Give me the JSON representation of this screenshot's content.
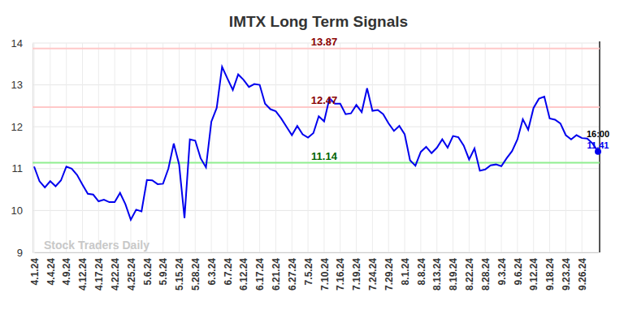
{
  "chart_data": {
    "type": "line",
    "title": "IMTX Long Term Signals",
    "watermark": "Stock Traders Daily",
    "categories": [
      "4.1.24",
      null,
      null,
      "4.4.24",
      null,
      null,
      "4.9.24",
      null,
      null,
      "4.12.24",
      null,
      null,
      "4.17.24",
      null,
      null,
      "4.22.24",
      null,
      null,
      "4.25.24",
      null,
      null,
      "5.6.24",
      null,
      null,
      "5.9.24",
      null,
      null,
      "5.15.24",
      null,
      null,
      "5.28.24",
      null,
      null,
      "6.3.24",
      null,
      null,
      "6.7.24",
      null,
      null,
      "6.12.24",
      null,
      null,
      "6.17.24",
      null,
      null,
      "6.21.24",
      null,
      null,
      "6.27.24",
      null,
      null,
      "7.5.24",
      null,
      null,
      "7.10.24",
      null,
      null,
      "7.16.24",
      null,
      null,
      "7.19.24",
      null,
      null,
      "7.24.24",
      null,
      null,
      "7.29.24",
      null,
      null,
      "8.1.24",
      null,
      null,
      "8.8.24",
      null,
      null,
      "8.13.24",
      null,
      null,
      "8.19.24",
      null,
      null,
      "8.22.24",
      null,
      null,
      "8.28.24",
      null,
      null,
      "9.3.24",
      null,
      null,
      "9.6.24",
      null,
      null,
      "9.12.24",
      null,
      null,
      "9.18.24",
      null,
      null,
      "9.23.24",
      null,
      null,
      "9.26.24",
      null,
      null,
      null
    ],
    "series": [
      {
        "name": "IMTX",
        "color": "#0000ee",
        "values": [
          11.05,
          10.7,
          10.55,
          10.7,
          10.58,
          10.72,
          11.05,
          11.0,
          10.85,
          10.62,
          10.4,
          10.38,
          10.22,
          10.26,
          10.2,
          10.2,
          10.42,
          10.15,
          9.78,
          10.02,
          9.98,
          10.73,
          10.72,
          10.63,
          10.64,
          11.0,
          11.6,
          11.1,
          9.82,
          11.7,
          11.67,
          11.25,
          11.03,
          12.12,
          12.45,
          13.43,
          13.15,
          12.88,
          13.25,
          13.12,
          12.95,
          13.02,
          13.0,
          12.55,
          12.42,
          12.37,
          12.2,
          12.0,
          11.8,
          12.02,
          11.82,
          11.74,
          11.85,
          12.25,
          12.13,
          12.68,
          12.55,
          12.55,
          12.3,
          12.32,
          12.52,
          12.35,
          12.92,
          12.38,
          12.4,
          12.3,
          12.08,
          11.9,
          12.02,
          11.82,
          11.2,
          11.07,
          11.4,
          11.52,
          11.37,
          11.5,
          11.7,
          11.5,
          11.78,
          11.75,
          11.55,
          11.22,
          11.48,
          10.95,
          10.98,
          11.08,
          11.1,
          11.06,
          11.25,
          11.42,
          11.7,
          12.18,
          11.93,
          12.45,
          12.67,
          12.72,
          12.2,
          12.17,
          12.08,
          11.8,
          11.7,
          11.8,
          11.73,
          11.72,
          11.6,
          11.41
        ]
      }
    ],
    "reference_lines": [
      {
        "value": 13.87,
        "color": "#ffc8c8",
        "label_color": "#8b0000"
      },
      {
        "value": 12.47,
        "color": "#ffc8c8",
        "label_color": "#8b0000"
      },
      {
        "value": 11.14,
        "color": "#90ee90",
        "label_color": "#006400"
      }
    ],
    "last_label": "16:00",
    "ylim": [
      9,
      14
    ],
    "yticks": [
      9,
      10,
      11,
      12,
      13,
      14
    ],
    "grid": true
  }
}
